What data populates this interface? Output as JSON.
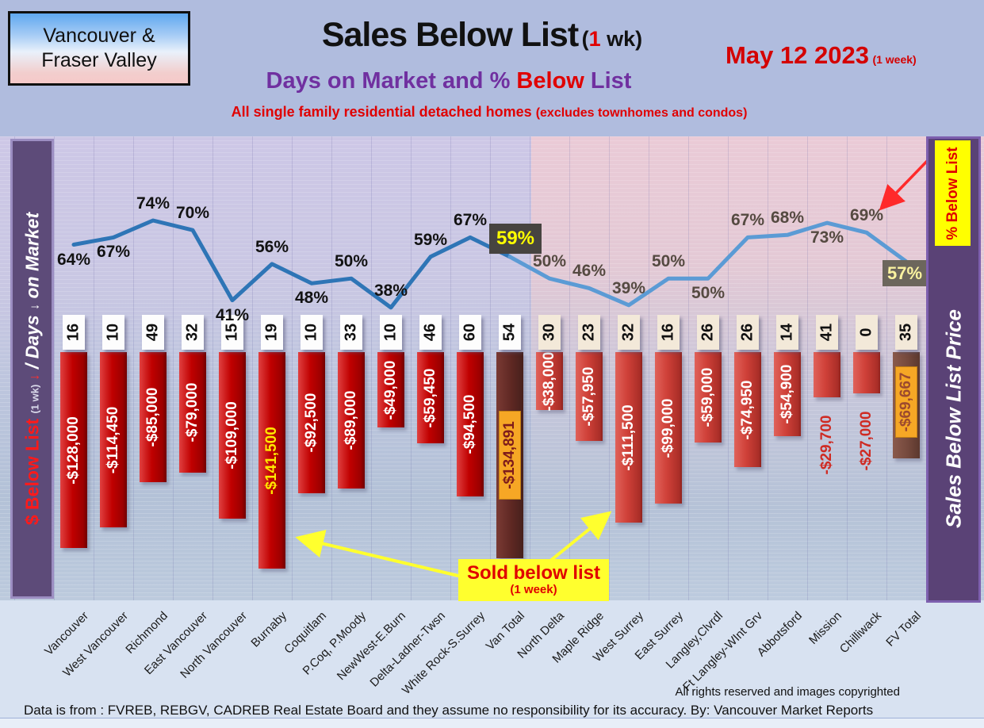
{
  "header": {
    "region_box": {
      "line1": "Vancouver &",
      "line2": "Fraser Valley"
    },
    "title": {
      "main": "Sales Below List",
      "paren_pre": "(",
      "paren_num": "1",
      "paren_post": " wk)"
    },
    "date": {
      "main": "May 12  2023",
      "sub": "(1 week)"
    },
    "subtitle": {
      "p1": "Days on Market and % ",
      "p2": "Below",
      "p3": " List"
    },
    "tagline": {
      "p1": "All single family residential detached homes ",
      "p2": "(excludes townhomes and condos)"
    }
  },
  "left_banner": {
    "s1": "$ Below List ",
    "s2": "(1 wk)",
    "arrow_red": " ↓",
    "s3": " / Days ",
    "arrow_white": "↓",
    "s4": " on Market"
  },
  "right_banner": {
    "pct_flag": "% Below List",
    "main": "Sales Below List Price"
  },
  "annotations": {
    "sold_below": {
      "line1": "Sold below list",
      "line2": "(1 week)"
    }
  },
  "footer": {
    "rights": "All rights reserved and  images copyrighted",
    "source": "Data is from : FVREB, REBGV, CADREB Real Estate Board and they assume no responsibility for its accuracy. By: Vancouver Market Reports"
  },
  "chart_data": {
    "type": "combo bar+line",
    "title": "Sales Below List (1 wk) — Days on Market and % Below List — May 12 2023",
    "categories": [
      "Vancouver",
      "West Vancouver",
      "Richmond",
      "East Vancouver",
      "North Vancouver",
      "Burnaby",
      "Coquitlam",
      "P.Coq, P.Moody",
      "NewWest-E.Burn",
      "Delta-Ladner-Twsn",
      "White Rock-S.Surrey",
      "Van Total",
      "North Delta",
      "Maple Ridge",
      "West Surrey",
      "East Surrey",
      "Langley,Clvrdl",
      "Ft Langley-WInt Grv",
      "Abbotsford",
      "Mission",
      "Chilliwack",
      "FV Total"
    ],
    "groups": [
      "van",
      "van",
      "van",
      "van",
      "van",
      "van",
      "van",
      "van",
      "van",
      "van",
      "van",
      "van_total",
      "fv",
      "fv",
      "fv",
      "fv",
      "fv",
      "fv",
      "fv",
      "fv",
      "fv",
      "fv_total"
    ],
    "series": [
      {
        "name": "Days on Market",
        "type": "label-row",
        "values": [
          16,
          10,
          49,
          32,
          15,
          19,
          10,
          33,
          10,
          46,
          60,
          54,
          30,
          23,
          32,
          16,
          26,
          26,
          14,
          41,
          0,
          35
        ]
      },
      {
        "name": "$ Below List (1 wk)",
        "type": "bar",
        "values": [
          -128000,
          -114450,
          -85000,
          -79000,
          -109000,
          -141500,
          -92500,
          -89000,
          -49000,
          -59450,
          -94500,
          -134891,
          -38000,
          -57950,
          -111500,
          -99000,
          -59000,
          -74950,
          -54900,
          -29700,
          -27000,
          -69667
        ]
      },
      {
        "name": "% Below List",
        "type": "line",
        "values": [
          64,
          67,
          74,
          70,
          41,
          56,
          48,
          50,
          38,
          59,
          67,
          59,
          50,
          46,
          39,
          50,
          50,
          67,
          68,
          73,
          69,
          57
        ]
      }
    ],
    "dollar_labels": [
      "-$128,000",
      "-$114,450",
      "-$85,000",
      "-$79,000",
      "-$109,000",
      "-$141,500",
      "-$92,500",
      "-$89,000",
      "-$49,000",
      "-$59,450",
      "-$94,500",
      "-$134,891",
      "-$38,000",
      "-$57,950",
      "-$111,500",
      "-$99,000",
      "-$59,000",
      "-$74,950",
      "-$54,900",
      "-$29,700",
      "-$27,000",
      "-$69,667"
    ],
    "pct_labels": [
      "64%",
      "67%",
      "74%",
      "70%",
      "41%",
      "56%",
      "48%",
      "50%",
      "38%",
      "59%",
      "67%",
      "59%",
      "50%",
      "46%",
      "39%",
      "50%",
      "50%",
      "67%",
      "68%",
      "73%",
      "69%",
      "57%"
    ],
    "pct_label_pos": [
      "below",
      "below",
      "above",
      "above",
      "below",
      "above",
      "below",
      "above",
      "above",
      "above",
      "above",
      "box-above",
      "above",
      "above",
      "above",
      "above",
      "below",
      "above",
      "above",
      "below",
      "above",
      "box-below"
    ],
    "ylim_bar": [
      -150000,
      0
    ],
    "pct_range_shown": [
      38,
      74
    ],
    "grid": "vertical column separators, horizontal pinstripes",
    "colors": {
      "bar_van": "#c00000",
      "bar_fv": "#cf4038",
      "bar_van_total": "#5f2823",
      "bar_fv_total": "#75493d",
      "total_label_bg": "#f6a725",
      "line_van": "#2e75b6",
      "line_fv": "#5b9bd5",
      "bg_van": "#cdc7e6",
      "bg_fv": "#eacad6",
      "highlight_box_1": "#474440",
      "highlight_box_2": "#6c665c",
      "highlight_text": "#ffff00",
      "banner_purple": "#5a4276",
      "annotation_yellow": "#ffff2e",
      "accent_red": "#e00000"
    }
  }
}
